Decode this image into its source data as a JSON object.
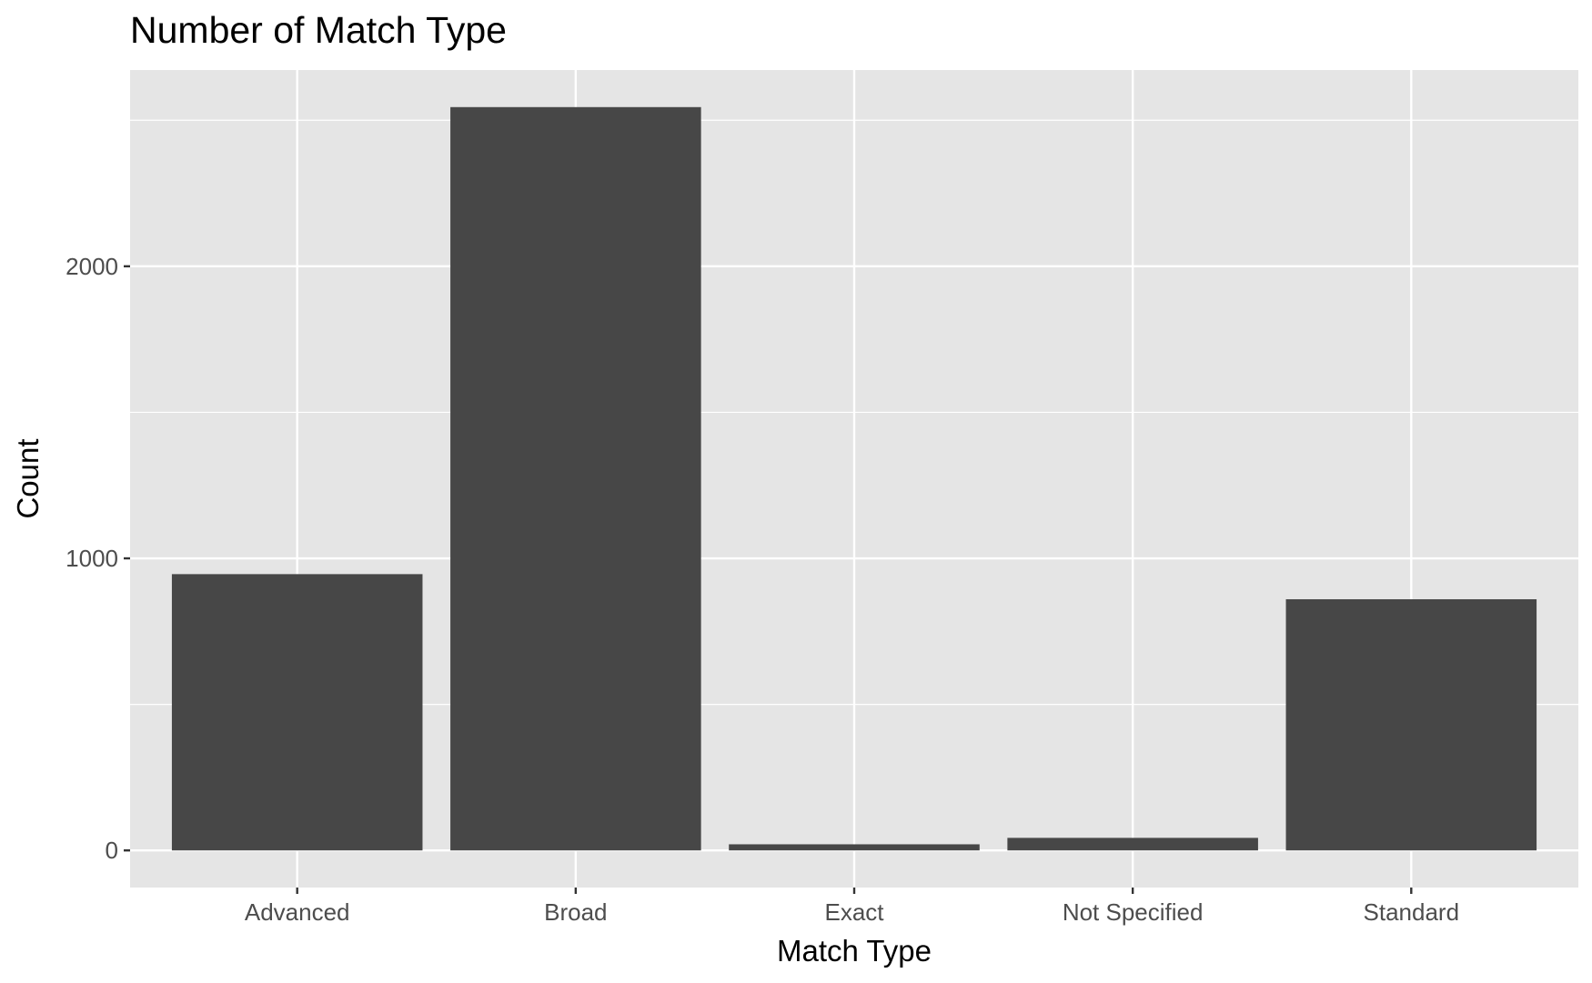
{
  "chart_data": {
    "type": "bar",
    "title": "Number of Match Type",
    "xlabel": "Match Type",
    "ylabel": "Count",
    "categories": [
      "Advanced",
      "Broad",
      "Exact",
      "Not Specified",
      "Standard"
    ],
    "values": [
      946,
      2545,
      21,
      43,
      860
    ],
    "ylim": [
      -127,
      2672
    ],
    "yticks": [
      0,
      1000,
      2000
    ],
    "ytick_labels": [
      "0",
      "1000",
      "2000"
    ],
    "grid": true,
    "bar_color": "#474747",
    "panel_color": "#e5e5e5",
    "grid_color": "#ffffff"
  }
}
